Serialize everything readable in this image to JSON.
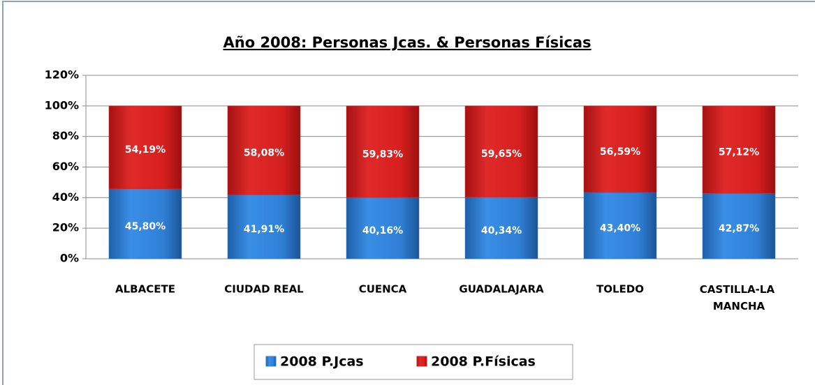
{
  "chart_data": {
    "type": "stacked_bar",
    "title": "Año 2008: Personas Jcas. & Personas Físicas",
    "categories": [
      "ALBACETE",
      "CIUDAD REAL",
      "CUENCA",
      "GUADALAJARA",
      "TOLEDO",
      "CASTILLA-LA MANCHA"
    ],
    "series": [
      {
        "name": "2008 P.Jcas",
        "color": "#2f7fd6",
        "values": [
          45.8,
          41.91,
          40.16,
          40.34,
          43.4,
          42.87
        ],
        "value_labels": [
          "45,80%",
          "41,91%",
          "40,16%",
          "40,34%",
          "43,40%",
          "42,87%"
        ]
      },
      {
        "name": "2008 P.Físicas",
        "color": "#d61f1f",
        "values": [
          54.19,
          58.08,
          59.83,
          59.65,
          56.59,
          57.12
        ],
        "value_labels": [
          "54,19%",
          "58,08%",
          "59,83%",
          "59,65%",
          "56,59%",
          "57,12%"
        ]
      }
    ],
    "ylim": [
      0,
      120
    ],
    "yticks": [
      {
        "value": 0,
        "label": "0%"
      },
      {
        "value": 20,
        "label": "20%"
      },
      {
        "value": 40,
        "label": "40%"
      },
      {
        "value": 60,
        "label": "60%"
      },
      {
        "value": 80,
        "label": "80%"
      },
      {
        "value": 100,
        "label": "100%"
      },
      {
        "value": 120,
        "label": "120%"
      }
    ],
    "grid": true,
    "legend": "bottom"
  }
}
